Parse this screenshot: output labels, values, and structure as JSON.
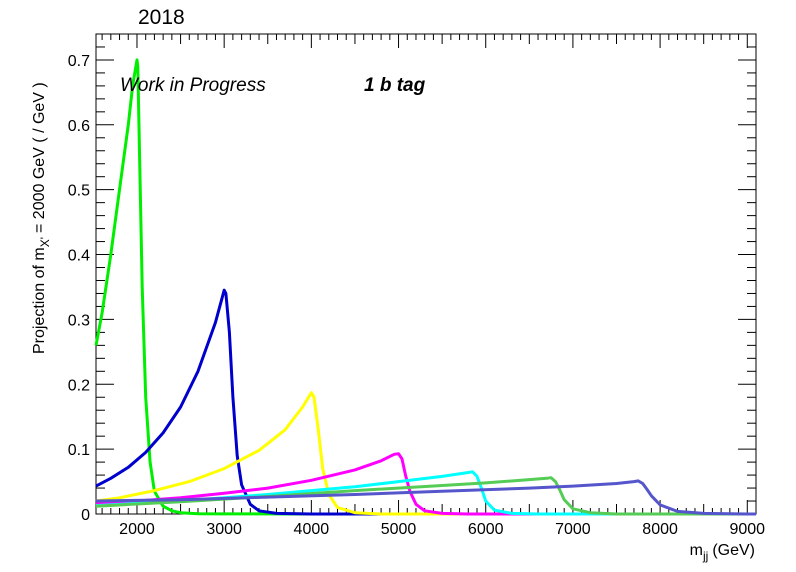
{
  "chart_data": {
    "type": "line",
    "title": "2018",
    "xlabel_main": "m",
    "xlabel_sub": "jj",
    "xlabel_unit": "(GeV)",
    "ylabel_prefix": "Projection of m",
    "ylabel_sub": "X'",
    "ylabel_suffix": "= 2000 GeV ( / GeV )",
    "annotations": [
      "Work in Progress",
      "1 b tag"
    ],
    "xlim": [
      1530,
      9100
    ],
    "ylim": [
      0,
      0.74
    ],
    "x_ticks": [
      2000,
      3000,
      4000,
      5000,
      6000,
      7000,
      8000,
      9000
    ],
    "x_tick_labels": [
      "2000",
      "3000",
      "4000",
      "5000",
      "6000",
      "7000",
      "8000",
      "9000"
    ],
    "y_ticks": [
      0,
      0.1,
      0.2,
      0.3,
      0.4,
      0.5,
      0.6,
      0.7
    ],
    "y_tick_labels": [
      "0",
      "0.1",
      "0.2",
      "0.3",
      "0.4",
      "0.5",
      "0.6",
      "0.7"
    ],
    "grid": false,
    "legend": "none",
    "series": [
      {
        "color": "#00ee00",
        "x": [
          1530,
          1600,
          1700,
          1800,
          1900,
          1950,
          2000,
          2010,
          2030,
          2060,
          2100,
          2150,
          2200,
          2300,
          2400,
          2500,
          2700,
          3000,
          4000,
          9100
        ],
        "y": [
          0.26,
          0.31,
          0.4,
          0.5,
          0.6,
          0.66,
          0.7,
          0.69,
          0.55,
          0.35,
          0.18,
          0.08,
          0.035,
          0.012,
          0.005,
          0.002,
          0.0005,
          0.0002,
          0.0,
          0.0
        ]
      },
      {
        "color": "#0000cc",
        "x": [
          1530,
          1700,
          1900,
          2100,
          2300,
          2500,
          2700,
          2900,
          3000,
          3020,
          3060,
          3100,
          3150,
          3200,
          3300,
          3400,
          3600,
          4000,
          9100
        ],
        "y": [
          0.043,
          0.055,
          0.072,
          0.095,
          0.125,
          0.165,
          0.22,
          0.295,
          0.345,
          0.34,
          0.28,
          0.18,
          0.09,
          0.045,
          0.015,
          0.005,
          0.001,
          0.0,
          0.0
        ]
      },
      {
        "color": "#ffff00",
        "x": [
          1530,
          1800,
          2200,
          2600,
          3000,
          3400,
          3700,
          3900,
          4000,
          4030,
          4080,
          4130,
          4200,
          4300,
          4500,
          4800,
          9100
        ],
        "y": [
          0.02,
          0.025,
          0.036,
          0.05,
          0.07,
          0.098,
          0.13,
          0.165,
          0.187,
          0.18,
          0.13,
          0.07,
          0.03,
          0.01,
          0.002,
          0.0,
          0.0
        ]
      },
      {
        "color": "#ff00ff",
        "x": [
          1530,
          2000,
          2500,
          3000,
          3500,
          4000,
          4500,
          4800,
          4950,
          5000,
          5040,
          5080,
          5130,
          5200,
          5300,
          5500,
          5800,
          9100
        ],
        "y": [
          0.016,
          0.02,
          0.025,
          0.032,
          0.04,
          0.052,
          0.068,
          0.082,
          0.092,
          0.093,
          0.085,
          0.06,
          0.035,
          0.015,
          0.005,
          0.001,
          0.0,
          0.0
        ]
      },
      {
        "color": "#00ffff",
        "x": [
          1530,
          2500,
          3500,
          4500,
          5000,
          5500,
          5800,
          5850,
          5900,
          5950,
          6000,
          6100,
          6300,
          6600,
          9100
        ],
        "y": [
          0.013,
          0.02,
          0.03,
          0.042,
          0.05,
          0.058,
          0.064,
          0.065,
          0.058,
          0.04,
          0.02,
          0.006,
          0.001,
          0.0,
          0.0
        ]
      },
      {
        "color": "#55cc55",
        "x": [
          1530,
          2500,
          3500,
          4500,
          5500,
          6000,
          6500,
          6700,
          6750,
          6800,
          6850,
          6900,
          7000,
          7200,
          7500,
          9100
        ],
        "y": [
          0.012,
          0.019,
          0.027,
          0.036,
          0.044,
          0.048,
          0.053,
          0.055,
          0.056,
          0.05,
          0.037,
          0.022,
          0.008,
          0.002,
          0.0,
          0.0
        ]
      },
      {
        "color": "#5555cc",
        "x": [
          1530,
          2500,
          3500,
          4500,
          5500,
          6500,
          7000,
          7500,
          7700,
          7750,
          7800,
          7850,
          7900,
          8000,
          8200,
          8500,
          9000,
          9100
        ],
        "y": [
          0.02,
          0.022,
          0.026,
          0.03,
          0.035,
          0.04,
          0.043,
          0.047,
          0.05,
          0.051,
          0.047,
          0.038,
          0.028,
          0.014,
          0.004,
          0.001,
          0.0,
          0.0
        ]
      }
    ]
  }
}
